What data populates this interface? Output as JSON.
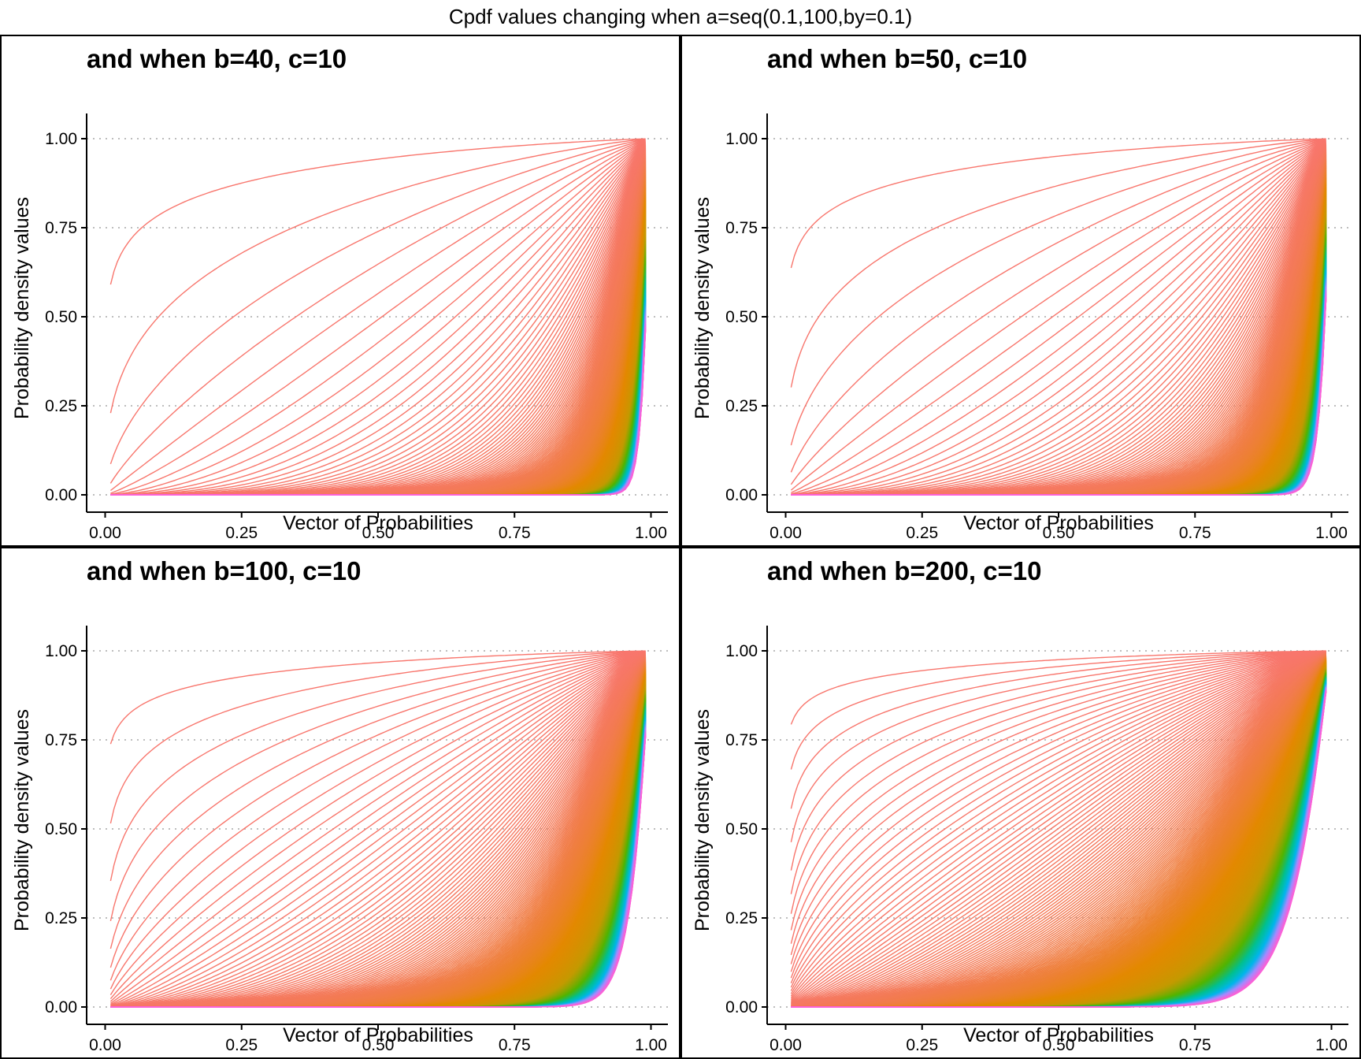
{
  "figure": {
    "title": "Cpdf values changing when a=seq(0.1,100,by=0.1)"
  },
  "chart_data": [
    {
      "type": "line",
      "title": "and when b=40, c=10",
      "xlabel": "Vector of Probabilities",
      "ylabel": "Probability density values",
      "xlim": [
        0,
        1
      ],
      "ylim": [
        0,
        1
      ],
      "xticks": [
        "0.00",
        "0.25",
        "0.50",
        "0.75",
        "1.00"
      ],
      "yticks": [
        "0.00",
        "0.25",
        "0.50",
        "0.75",
        "1.00"
      ],
      "x_range": [
        0.01,
        0.99
      ],
      "b": 40,
      "c": 10,
      "a_range": [
        0.1,
        100
      ],
      "a_step": 0.1,
      "grid": "horizontal-dotted",
      "legend": "none",
      "series_color_scale": [
        "#f8766d",
        "#e38900",
        "#c49a00",
        "#53b400",
        "#00c094",
        "#00b6eb",
        "#a58aff",
        "#fb61d7"
      ]
    },
    {
      "type": "line",
      "title": "and when b=50, c=10",
      "xlabel": "Vector of Probabilities",
      "ylabel": "Probability density values",
      "xlim": [
        0,
        1
      ],
      "ylim": [
        0,
        1
      ],
      "xticks": [
        "0.00",
        "0.25",
        "0.50",
        "0.75",
        "1.00"
      ],
      "yticks": [
        "0.00",
        "0.25",
        "0.50",
        "0.75",
        "1.00"
      ],
      "x_range": [
        0.01,
        0.99
      ],
      "b": 50,
      "c": 10,
      "a_range": [
        0.1,
        100
      ],
      "a_step": 0.1,
      "grid": "horizontal-dotted",
      "legend": "none",
      "series_color_scale": [
        "#f8766d",
        "#e38900",
        "#c49a00",
        "#53b400",
        "#00c094",
        "#00b6eb",
        "#a58aff",
        "#fb61d7"
      ]
    },
    {
      "type": "line",
      "title": "and when b=100, c=10",
      "xlabel": "Vector of Probabilities",
      "ylabel": "Probability density values",
      "xlim": [
        0,
        1
      ],
      "ylim": [
        0,
        1
      ],
      "xticks": [
        "0.00",
        "0.25",
        "0.50",
        "0.75",
        "1.00"
      ],
      "yticks": [
        "0.00",
        "0.25",
        "0.50",
        "0.75",
        "1.00"
      ],
      "x_range": [
        0.01,
        0.99
      ],
      "b": 100,
      "c": 10,
      "a_range": [
        0.1,
        100
      ],
      "a_step": 0.1,
      "grid": "horizontal-dotted",
      "legend": "none",
      "series_color_scale": [
        "#f8766d",
        "#e38900",
        "#c49a00",
        "#53b400",
        "#00c094",
        "#00b6eb",
        "#a58aff",
        "#fb61d7"
      ]
    },
    {
      "type": "line",
      "title": "and when b=200, c=10",
      "xlabel": "Vector of Probabilities",
      "ylabel": "Probability density values",
      "xlim": [
        0,
        1
      ],
      "ylim": [
        0,
        1
      ],
      "xticks": [
        "0.00",
        "0.25",
        "0.50",
        "0.75",
        "1.00"
      ],
      "yticks": [
        "0.00",
        "0.25",
        "0.50",
        "0.75",
        "1.00"
      ],
      "x_range": [
        0.01,
        0.99
      ],
      "b": 200,
      "c": 10,
      "a_range": [
        0.1,
        100
      ],
      "a_step": 0.1,
      "grid": "horizontal-dotted",
      "legend": "none",
      "series_color_scale": [
        "#f8766d",
        "#e38900",
        "#c49a00",
        "#53b400",
        "#00c094",
        "#00b6eb",
        "#a58aff",
        "#fb61d7"
      ]
    }
  ]
}
